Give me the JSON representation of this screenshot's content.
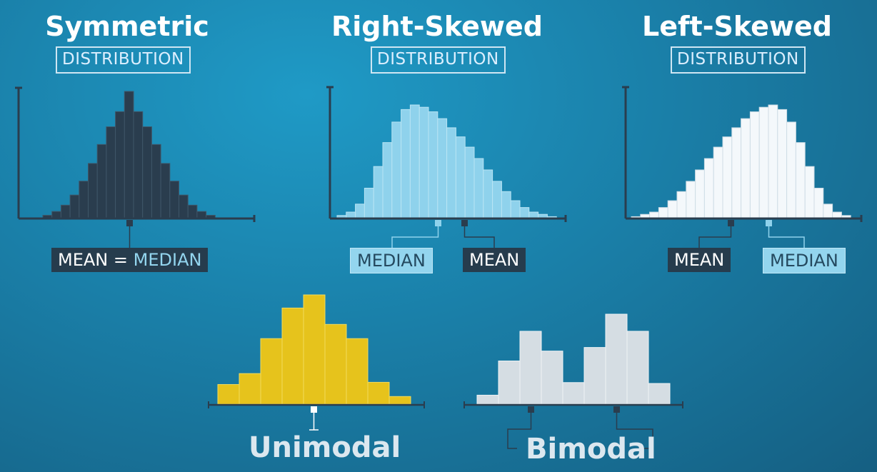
{
  "panels": {
    "symmetric": {
      "title": "Symmetric",
      "subtitle": "DISTRIBUTION",
      "label_mean": "MEAN",
      "label_eq": "=",
      "label_median": "MEDIAN"
    },
    "right_skewed": {
      "title": "Right-Skewed",
      "subtitle": "DISTRIBUTION",
      "label_median": "MEDIAN",
      "label_mean": "MEAN"
    },
    "left_skewed": {
      "title": "Left-Skewed",
      "subtitle": "DISTRIBUTION",
      "label_mean": "MEAN",
      "label_median": "MEDIAN"
    },
    "unimodal": {
      "label": "Unimodal"
    },
    "bimodal": {
      "label": "Bimodal"
    }
  },
  "colors": {
    "symmetric_bar": "#2a3d4e",
    "right_skewed_bar": "#8fd2ec",
    "left_skewed_bar": "#f4f8fb",
    "unimodal_bar": "#e6c31c",
    "bimodal_bar": "#d5dde3",
    "axis": "#2a3d4e",
    "mean_marker": "#2a3d4e",
    "median_marker": "#8fd2ec"
  },
  "chart_data": [
    {
      "type": "bar",
      "values": [
        2,
        5,
        10,
        18,
        29,
        43,
        58,
        72,
        84,
        100,
        84,
        72,
        58,
        43,
        29,
        18,
        10,
        5,
        2
      ]
    },
    {
      "type": "bar",
      "values": [
        2,
        5,
        12,
        26,
        45,
        66,
        84,
        95,
        99,
        97,
        93,
        87,
        79,
        71,
        62,
        52,
        42,
        32,
        23,
        15,
        9,
        5,
        3,
        1
      ]
    },
    {
      "type": "bar",
      "values": [
        1,
        3,
        5,
        9,
        15,
        23,
        32,
        42,
        52,
        62,
        71,
        79,
        87,
        93,
        97,
        99,
        95,
        84,
        66,
        45,
        26,
        12,
        5,
        2
      ]
    },
    {
      "type": "bar",
      "values": [
        18,
        28,
        60,
        88,
        100,
        73,
        60,
        20,
        7
      ]
    },
    {
      "type": "bar",
      "values": [
        10,
        48,
        81,
        59,
        24,
        63,
        100,
        81,
        23
      ]
    }
  ]
}
